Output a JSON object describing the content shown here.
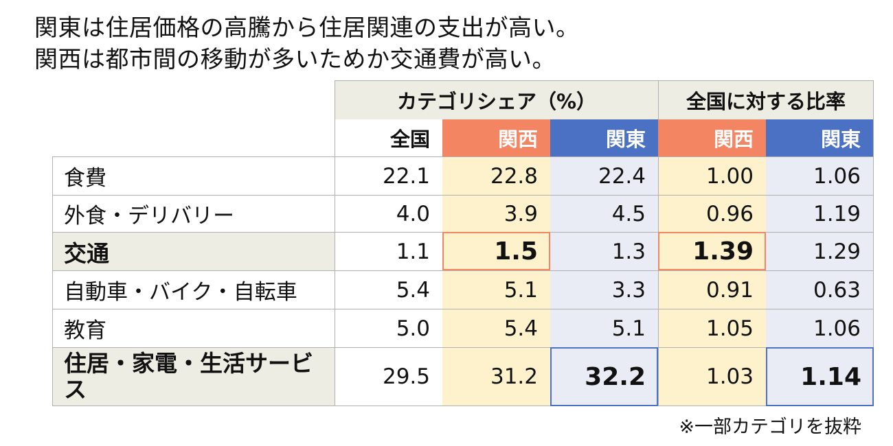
{
  "headline": {
    "line1": "関東は住居価格の高騰から住居関連の支出が高い。",
    "line2": "関西は都市間の移動が多いためか交通費が高い。"
  },
  "chart_data": {
    "type": "table",
    "group_headers": [
      "カテゴリシェア（%）",
      "全国に対する比率"
    ],
    "columns": [
      "全国",
      "関西",
      "関東",
      "関西",
      "関東"
    ],
    "rows": [
      {
        "label": "食費",
        "values": [
          "22.1",
          "22.8",
          "22.4",
          "1.00",
          "1.06"
        ]
      },
      {
        "label": "外食・デリバリー",
        "values": [
          "4.0",
          "3.9",
          "4.5",
          "0.96",
          "1.19"
        ]
      },
      {
        "label": "交通",
        "values": [
          "1.1",
          "1.5",
          "1.3",
          "1.39",
          "1.29"
        ]
      },
      {
        "label": "自動車・バイク・自転車",
        "values": [
          "5.4",
          "5.1",
          "3.3",
          "0.91",
          "0.63"
        ]
      },
      {
        "label": "教育",
        "values": [
          "5.0",
          "5.4",
          "5.1",
          "1.05",
          "1.06"
        ]
      },
      {
        "label": "住居・家電・生活サービス",
        "values": [
          "29.5",
          "31.2",
          "32.2",
          "1.03",
          "1.14"
        ]
      }
    ],
    "colors": {
      "kansai_header": "#f48563",
      "kanto_header": "#4a71c4",
      "kansai_cell": "#fdf2cc",
      "kanto_cell": "#e9ecf5",
      "emphasis_row": "#eeede4"
    }
  },
  "note": "※一部カテゴリを抜粋"
}
